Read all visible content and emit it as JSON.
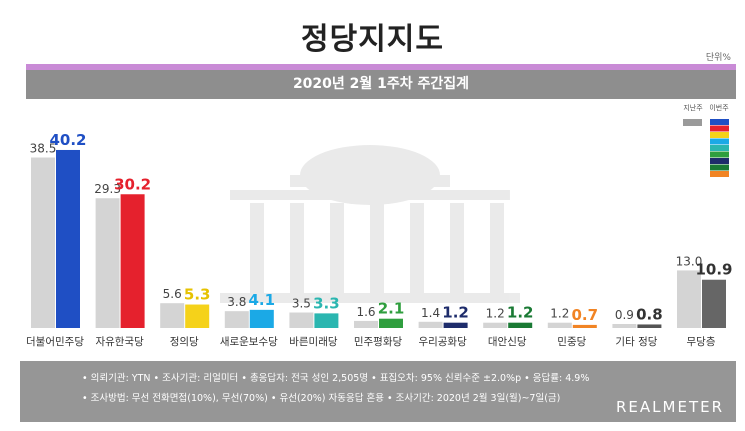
{
  "title": "정당지지도",
  "unit": "단위%",
  "subtitle": "2020년 2월 1주차 주간집계",
  "legend": {
    "prev": "지난주",
    "curr": "이번주"
  },
  "colors": {
    "prev": "#d4d4d4",
    "stripe": "#c98bd6",
    "band": "#8e8e8e"
  },
  "chart_data": {
    "type": "bar",
    "title": "정당지지도",
    "subtitle": "2020년 2월 1주차 주간집계",
    "unit": "단위%",
    "categories": [
      "더불어민주당",
      "자유한국당",
      "정의당",
      "새로운보수당",
      "바른미래당",
      "민주평화당",
      "우리공화당",
      "대안신당",
      "민중당",
      "기타 정당",
      "무당층"
    ],
    "series": [
      {
        "name": "지난주",
        "values": [
          38.5,
          29.3,
          5.6,
          3.8,
          3.5,
          1.6,
          1.4,
          1.2,
          1.2,
          0.9,
          13.0
        ]
      },
      {
        "name": "이번주",
        "values": [
          40.2,
          30.2,
          5.3,
          4.1,
          3.3,
          2.1,
          1.2,
          1.2,
          0.7,
          0.8,
          10.9
        ]
      }
    ],
    "value_labels": {
      "prev": [
        "38.5",
        "29.3",
        "5.6",
        "3.8",
        "3.5",
        "1.6",
        "1.4",
        "1.2",
        "1.2",
        "0.9",
        "13.0"
      ],
      "curr": [
        "40.2",
        "30.2",
        "5.3",
        "4.1",
        "3.3",
        "2.1",
        "1.2",
        "1.2",
        "0.7",
        "0.8",
        "10.9"
      ]
    },
    "current_colors": [
      "#1f4fc4",
      "#e5212d",
      "#f5d21a",
      "#1ba9e6",
      "#2bb6b0",
      "#2f9e3e",
      "#1e2c6b",
      "#1a7a34",
      "#f18424",
      "#555555",
      "#666666"
    ],
    "current_label_colors": [
      "#1f4fc4",
      "#e5212d",
      "#e6c200",
      "#1ba9e6",
      "#2bb6b0",
      "#2f9e3e",
      "#1e2c6b",
      "#1a7a34",
      "#f18424",
      "#333333",
      "#333333"
    ],
    "ylim": [
      0,
      42
    ],
    "grid": false,
    "legend": "top-right"
  },
  "footer": {
    "line1": "• 의뢰기관: YTN  • 조사기관: 리얼미터  • 총응답자: 전국 성인 2,505명  • 표집오차: 95% 신뢰수준 ±2.0%p  • 응답률: 4.9%",
    "line2": "• 조사방법: 무선 전화면접(10%), 무선(70%) • 유선(20%) 자동응답 혼용  • 조사기간: 2020년 2월 3일(월)~7일(금)",
    "brand": "REALMETER"
  }
}
